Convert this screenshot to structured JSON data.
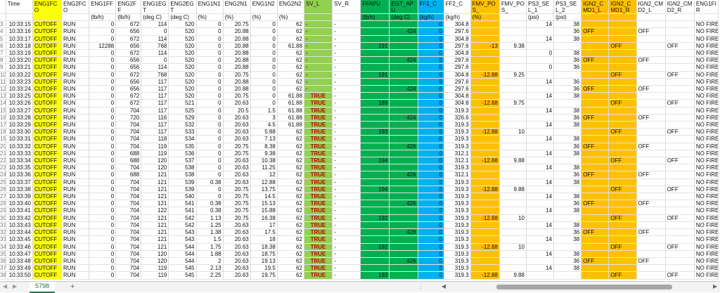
{
  "sheet": {
    "tab_name": "5798",
    "add_sheet_label": "+",
    "headers": [
      "",
      "Time",
      "ENG1FCO",
      "ENG2FCO",
      "ENG1FF",
      "ENG2FF",
      "ENG1EGT",
      "ENG2EGT",
      "ENG1N1",
      "ENG2N1",
      "ENG1N2",
      "ENG2N2",
      "SV_L",
      "SV_R",
      "FFAPU",
      "EGT_APU",
      "FF1_C",
      "FF2_C",
      "FMV_POS_",
      "FMV_POS_",
      "PS3_SEL_1",
      "PS3_SEL_2",
      "IGN2_CMD1_L",
      "IGN2_CMD1_R",
      "IGN2_CMD2_L",
      "IGN2_CMD2_R",
      "ENG1FIR"
    ],
    "units": [
      "",
      "",
      "",
      "",
      "(lb/h)",
      "(lb/h)",
      "(deg C)",
      "(deg C)",
      "(%)",
      "(%)",
      "(%)",
      "(%)",
      "",
      "",
      "(lb/h)",
      "(deg C)",
      "(kg/h)",
      "(kg/h)",
      "(%)",
      "",
      "(psi)",
      "(psi)",
      "",
      "",
      "",
      "",
      ""
    ],
    "rows": [
      [
        "3",
        "10:33:15",
        "CUTOFF",
        "RUN",
        "0",
        "672",
        "114",
        "520",
        "0",
        "20.75",
        "0",
        "62",
        "-",
        "-",
        "",
        "",
        "0",
        "304.8",
        "",
        "",
        "14",
        "38",
        "",
        "",
        "",
        "",
        "NO FIRE"
      ],
      [
        "4",
        "10:33:16",
        "CUTOFF",
        "RUN",
        "0",
        "656",
        "0",
        "520",
        "0",
        "20.88",
        "0",
        "62",
        "-",
        "-",
        "",
        "424",
        "0",
        "297.6",
        "",
        "",
        "",
        "36",
        "OFF",
        "",
        "OFF",
        "",
        "NO FIRE"
      ],
      [
        "5",
        "10:33:17",
        "CUTOFF",
        "RUN",
        "0",
        "672",
        "114",
        "520",
        "0",
        "20.88",
        "0",
        "62",
        "-",
        "-",
        "",
        "",
        "0",
        "304.8",
        "",
        "",
        "14",
        "38",
        "",
        "",
        "",
        "",
        "NO FIRE"
      ],
      [
        "6",
        "10:33:18",
        "CUTOFF",
        "RUN",
        "12288",
        "656",
        "768",
        "520",
        "0",
        "20.88",
        "0",
        "61.88",
        "-",
        "-",
        "191",
        "",
        "0",
        "297.6",
        "-13",
        "9.38",
        "",
        "",
        "",
        "OFF",
        "",
        "OFF",
        "NO FIRE"
      ],
      [
        "7",
        "10:33:19",
        "CUTOFF",
        "RUN",
        "0",
        "672",
        "114",
        "520",
        "0",
        "20.88",
        "0",
        "62",
        "-",
        "-",
        "",
        "",
        "0",
        "304.8",
        "",
        "",
        "0",
        "38",
        "",
        "",
        "",
        "",
        "NO FIRE"
      ],
      [
        "8",
        "10:33:20",
        "CUTOFF",
        "RUN",
        "0",
        "656",
        "0",
        "520",
        "0",
        "20.88",
        "0",
        "62",
        "-",
        "-",
        "",
        "424",
        "0",
        "297.6",
        "",
        "",
        "",
        "36",
        "OFF",
        "",
        "OFF",
        "",
        "NO FIRE"
      ],
      [
        "9",
        "10:33:21",
        "CUTOFF",
        "RUN",
        "0",
        "656",
        "114",
        "520",
        "0",
        "20.88",
        "0",
        "62",
        "-",
        "-",
        "",
        "",
        "0",
        "297.6",
        "",
        "",
        "0",
        "36",
        "",
        "",
        "",
        "",
        "NO FIRE"
      ],
      [
        "10",
        "10:33:22",
        "CUTOFF",
        "RUN",
        "0",
        "672",
        "768",
        "520",
        "0",
        "20.75",
        "0",
        "62",
        "-",
        "-",
        "191",
        "",
        "0",
        "304.8",
        "-12.88",
        "9.25",
        "",
        "",
        "",
        "OFF",
        "",
        "OFF",
        "NO FIRE"
      ],
      [
        "11",
        "10:33:23",
        "CUTOFF",
        "RUN",
        "0",
        "656",
        "117",
        "520",
        "0",
        "20.88",
        "0",
        "62",
        "-",
        "-",
        "",
        "",
        "0",
        "297.6",
        "",
        "",
        "14",
        "36",
        "",
        "",
        "",
        "",
        "NO FIRE"
      ],
      [
        "12",
        "10:33:24",
        "CUTOFF",
        "RUN",
        "0",
        "656",
        "117",
        "520",
        "0",
        "20.88",
        "0",
        "62",
        "-",
        "-",
        "",
        "424",
        "0",
        "297.6",
        "",
        "",
        "",
        "36",
        "OFF",
        "",
        "OFF",
        "",
        "NO FIRE"
      ],
      [
        "13",
        "10:33:25",
        "CUTOFF",
        "RUN",
        "0",
        "672",
        "117",
        "520",
        "0",
        "20.75",
        "0",
        "61.88",
        "TRUE",
        "-",
        "",
        "",
        "0",
        "304.8",
        "",
        "",
        "14",
        "38",
        "",
        "",
        "",
        "",
        "NO FIRE"
      ],
      [
        "14",
        "10:33:26",
        "CUTOFF",
        "RUN",
        "0",
        "672",
        "117",
        "521",
        "0",
        "20.63",
        "0",
        "61.88",
        "TRUE",
        "-",
        "189",
        "",
        "0",
        "304.8",
        "-12.88",
        "9.75",
        "",
        "",
        "",
        "OFF",
        "",
        "OFF",
        "NO FIRE"
      ],
      [
        "15",
        "10:33:27",
        "CUTOFF",
        "RUN",
        "0",
        "704",
        "117",
        "525",
        "0",
        "20.5",
        "1.5",
        "61.88",
        "TRUE",
        "-",
        "",
        "",
        "0",
        "319.3",
        "",
        "",
        "14",
        "38",
        "",
        "",
        "",
        "",
        "NO FIRE"
      ],
      [
        "16",
        "10:33:28",
        "CUTOFF",
        "RUN",
        "0",
        "720",
        "116",
        "529",
        "0",
        "20.63",
        "3",
        "61.88",
        "TRUE",
        "-",
        "",
        "424",
        "0",
        "326.6",
        "",
        "",
        "",
        "36",
        "OFF",
        "",
        "OFF",
        "",
        "NO FIRE"
      ],
      [
        "17",
        "10:33:29",
        "CUTOFF",
        "RUN",
        "0",
        "704",
        "117",
        "532",
        "0",
        "20.63",
        "4.5",
        "61.88",
        "TRUE",
        "-",
        "",
        "",
        "0",
        "319.3",
        "",
        "",
        "14",
        "38",
        "",
        "",
        "",
        "",
        "NO FIRE"
      ],
      [
        "18",
        "10:33:30",
        "CUTOFF",
        "RUN",
        "0",
        "704",
        "117",
        "533",
        "0",
        "20.63",
        "5.88",
        "62",
        "TRUE",
        "-",
        "193",
        "",
        "0",
        "319.3",
        "-12.88",
        "10",
        "",
        "",
        "",
        "OFF",
        "",
        "OFF",
        "NO FIRE"
      ],
      [
        "19",
        "10:33:31",
        "CUTOFF",
        "RUN",
        "0",
        "704",
        "118",
        "534",
        "0",
        "20.63",
        "7.13",
        "62",
        "TRUE",
        "-",
        "",
        "",
        "0",
        "319.3",
        "",
        "",
        "14",
        "38",
        "",
        "",
        "",
        "",
        "NO FIRE"
      ],
      [
        "20",
        "10:33:32",
        "CUTOFF",
        "RUN",
        "0",
        "704",
        "119",
        "535",
        "0",
        "20.75",
        "8.38",
        "62",
        "TRUE",
        "-",
        "",
        "426",
        "0",
        "319.3",
        "",
        "",
        "",
        "36",
        "OFF",
        "",
        "OFF",
        "",
        "NO FIRE"
      ],
      [
        "21",
        "10:33:33",
        "CUTOFF",
        "RUN",
        "0",
        "688",
        "119",
        "536",
        "0",
        "20.75",
        "9.38",
        "62",
        "TRUE",
        "-",
        "",
        "",
        "0",
        "312.1",
        "",
        "",
        "14",
        "38",
        "",
        "",
        "",
        "",
        "NO FIRE"
      ],
      [
        "22",
        "10:33:34",
        "CUTOFF",
        "RUN",
        "0",
        "688",
        "120",
        "537",
        "0",
        "20.63",
        "10.38",
        "62",
        "TRUE",
        "-",
        "194",
        "",
        "0",
        "312.1",
        "-12.88",
        "9.88",
        "",
        "",
        "",
        "OFF",
        "",
        "OFF",
        "NO FIRE"
      ],
      [
        "23",
        "10:33:35",
        "CUTOFF",
        "RUN",
        "0",
        "704",
        "120",
        "538",
        "0",
        "20.63",
        "11.25",
        "62",
        "TRUE",
        "-",
        "",
        "",
        "0",
        "319.3",
        "",
        "",
        "14",
        "38",
        "",
        "",
        "",
        "",
        "NO FIRE"
      ],
      [
        "24",
        "10:33:36",
        "CUTOFF",
        "RUN",
        "0",
        "688",
        "121",
        "538",
        "0",
        "20.63",
        "12",
        "62",
        "TRUE",
        "-",
        "",
        "426",
        "0",
        "312.1",
        "",
        "",
        "",
        "36",
        "OFF",
        "",
        "OFF",
        "",
        "NO FIRE"
      ],
      [
        "25",
        "10:33:37",
        "CUTOFF",
        "RUN",
        "0",
        "704",
        "121",
        "539",
        "0.38",
        "20.63",
        "12.88",
        "62",
        "TRUE",
        "-",
        "",
        "",
        "0",
        "319.3",
        "",
        "",
        "14",
        "38",
        "",
        "",
        "",
        "",
        "NO FIRE"
      ],
      [
        "26",
        "10:33:38",
        "CUTOFF",
        "RUN",
        "0",
        "704",
        "121",
        "539",
        "0",
        "20.75",
        "13.75",
        "62",
        "TRUE",
        "-",
        "194",
        "",
        "0",
        "319.3",
        "-12.88",
        "9.88",
        "",
        "",
        "",
        "OFF",
        "",
        "OFF",
        "NO FIRE"
      ],
      [
        "27",
        "10:33:39",
        "CUTOFF",
        "RUN",
        "0",
        "704",
        "121",
        "540",
        "0",
        "20.75",
        "14.5",
        "62",
        "TRUE",
        "-",
        "",
        "",
        "0",
        "319.3",
        "",
        "",
        "14",
        "38",
        "",
        "",
        "",
        "",
        "NO FIRE"
      ],
      [
        "28",
        "10:33:40",
        "CUTOFF",
        "RUN",
        "0",
        "704",
        "121",
        "541",
        "0.38",
        "20.75",
        "15.13",
        "62",
        "TRUE",
        "-",
        "",
        "426",
        "0",
        "319.3",
        "",
        "",
        "",
        "36",
        "OFF",
        "",
        "OFF",
        "",
        "NO FIRE"
      ],
      [
        "29",
        "10:33:41",
        "CUTOFF",
        "RUN",
        "0",
        "704",
        "122",
        "541",
        "0.38",
        "20.75",
        "15.88",
        "62",
        "TRUE",
        "-",
        "",
        "",
        "0",
        "319.3",
        "",
        "",
        "14",
        "38",
        "",
        "",
        "",
        "",
        "NO FIRE"
      ],
      [
        "30",
        "10:33:42",
        "CUTOFF",
        "RUN",
        "0",
        "704",
        "121",
        "542",
        "1.13",
        "20.75",
        "16.38",
        "62",
        "TRUE",
        "-",
        "192",
        "",
        "0",
        "319.3",
        "-12.88",
        "10",
        "",
        "",
        "",
        "OFF",
        "",
        "OFF",
        "NO FIRE"
      ],
      [
        "31",
        "10:33:43",
        "CUTOFF",
        "RUN",
        "0",
        "704",
        "121",
        "542",
        "1.25",
        "20.63",
        "17",
        "62",
        "TRUE",
        "-",
        "",
        "",
        "0",
        "319.3",
        "",
        "",
        "14",
        "38",
        "",
        "",
        "",
        "",
        "NO FIRE"
      ],
      [
        "32",
        "10:33:44",
        "CUTOFF",
        "RUN",
        "0",
        "704",
        "121",
        "543",
        "1.38",
        "20.63",
        "17.5",
        "62",
        "TRUE",
        "-",
        "",
        "428",
        "0",
        "319.3",
        "",
        "",
        "",
        "36",
        "OFF",
        "",
        "OFF",
        "",
        "NO FIRE"
      ],
      [
        "33",
        "10:33:45",
        "CUTOFF",
        "RUN",
        "0",
        "704",
        "121",
        "543",
        "1.5",
        "20.63",
        "18",
        "62",
        "TRUE",
        "-",
        "",
        "",
        "0",
        "319.3",
        "",
        "",
        "14",
        "38",
        "",
        "",
        "",
        "",
        "NO FIRE"
      ],
      [
        "34",
        "10:33:46",
        "CUTOFF",
        "RUN",
        "0",
        "704",
        "121",
        "544",
        "1.75",
        "20.63",
        "18.38",
        "62",
        "TRUE",
        "-",
        "192",
        "",
        "0",
        "319.3",
        "-12.88",
        "10",
        "",
        "",
        "",
        "OFF",
        "",
        "OFF",
        "NO FIRE"
      ],
      [
        "35",
        "10:33:47",
        "CUTOFF",
        "RUN",
        "0",
        "704",
        "120",
        "544",
        "1.88",
        "20.63",
        "18.75",
        "62",
        "TRUE",
        "-",
        "",
        "",
        "0",
        "319.3",
        "",
        "",
        "14",
        "38",
        "",
        "",
        "",
        "",
        "NO FIRE"
      ],
      [
        "36",
        "10:33:48",
        "CUTOFF",
        "RUN",
        "0",
        "704",
        "120",
        "544",
        "2",
        "20.63",
        "19.13",
        "62",
        "TRUE",
        "-",
        "",
        "426",
        "0",
        "319.3",
        "",
        "",
        "",
        "36",
        "OFF",
        "",
        "OFF",
        "",
        "NO FIRE"
      ],
      [
        "37",
        "10:33:49",
        "CUTOFF",
        "RUN",
        "0",
        "704",
        "119",
        "545",
        "2.13",
        "20.63",
        "19.5",
        "62",
        "TRUE",
        "-",
        "",
        "",
        "0",
        "319.3",
        "",
        "",
        "14",
        "38",
        "",
        "",
        "",
        "",
        "NO FIRE"
      ],
      [
        "38",
        "10:33:50",
        "CUTOFF",
        "RUN",
        "0",
        "704",
        "119",
        "545",
        "2.25",
        "20.63",
        "19.75",
        "62",
        "TRUE",
        "-",
        "193",
        "",
        "0",
        "319.3",
        "-12.88",
        "9.88",
        "",
        "",
        "",
        "OFF",
        "",
        "OFF",
        "NO FIRE"
      ]
    ]
  },
  "colors": {
    "yellow": "#ffff00",
    "light_green": "#92d050",
    "dark_green": "#00b050",
    "blue": "#00b0f0",
    "orange": "#ffc000",
    "true_text": "#c00000"
  }
}
